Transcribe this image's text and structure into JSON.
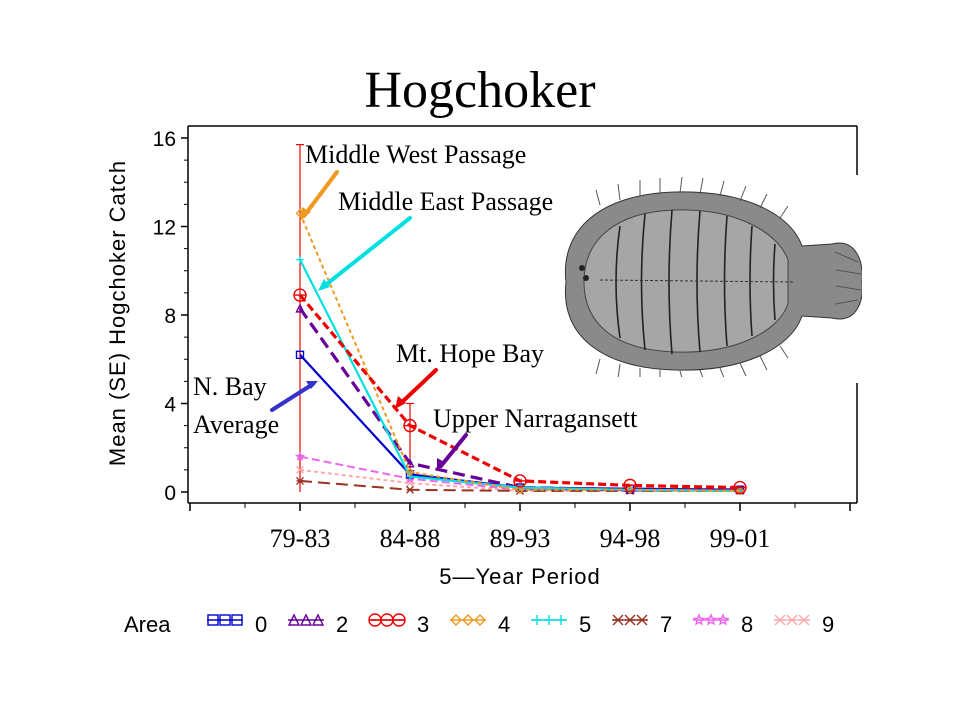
{
  "chart_data": {
    "type": "line",
    "title": "Hogchoker",
    "xlabel": "5—Year Period",
    "ylabel": "Mean (SE) Hogchoker Catch",
    "categories": [
      "79-83",
      "84-88",
      "89-93",
      "94-98",
      "99-01"
    ],
    "y_ticks": [
      "0",
      "4",
      "8",
      "12",
      "16"
    ],
    "ylim": [
      0,
      16
    ],
    "grid": false,
    "legend_position": "bottom",
    "legend_title": "Area",
    "series": [
      {
        "name": "0",
        "color": "#0000cc",
        "dash": "solid",
        "marker": "square",
        "values": [
          6.2,
          0.8,
          0.2,
          0.15,
          0.1
        ]
      },
      {
        "name": "2",
        "color": "#660099",
        "dash": "long",
        "marker": "triangle",
        "values": [
          8.3,
          1.3,
          0.2,
          0.1,
          0.1
        ]
      },
      {
        "name": "3",
        "color": "#ee0000",
        "dash": "medium",
        "marker": "circle",
        "values": [
          8.9,
          3.0,
          0.5,
          0.3,
          0.2
        ]
      },
      {
        "name": "4",
        "color": "#ee9922",
        "dash": "short",
        "marker": "diamond",
        "values": [
          12.6,
          0.9,
          0.1,
          0.1,
          0.05
        ]
      },
      {
        "name": "5",
        "color": "#00e0e0",
        "dash": "solid",
        "marker": "plus",
        "values": [
          10.5,
          0.7,
          0.2,
          0.1,
          0.05
        ]
      },
      {
        "name": "7",
        "color": "#993322",
        "dash": "long",
        "marker": "star",
        "values": [
          0.5,
          0.1,
          0.05,
          0.05,
          0.05
        ]
      },
      {
        "name": "8",
        "color": "#ee66ee",
        "dash": "medium",
        "marker": "asterisk",
        "values": [
          1.6,
          0.6,
          0.1,
          0.1,
          0.05
        ]
      },
      {
        "name": "9",
        "color": "#ffaaaa",
        "dash": "short",
        "marker": "cross",
        "values": [
          1.0,
          0.4,
          0.05,
          0.05,
          0.05
        ]
      }
    ],
    "error_bars": [
      {
        "series": "3",
        "category": "79-83",
        "low": 0.0,
        "high": 15.7
      },
      {
        "series": "3",
        "category": "84-88",
        "low": 1.0,
        "high": 4.0
      }
    ],
    "annotations": [
      {
        "text": "Middle West Passage",
        "series": "4"
      },
      {
        "text": "Middle East Passage",
        "series": "5"
      },
      {
        "text": "Mt. Hope Bay",
        "series": "3"
      },
      {
        "text": "Upper Narragansett",
        "series": "2"
      },
      {
        "text": "N. Bay",
        "series": "0"
      },
      {
        "text": "Average",
        "series": "0"
      }
    ]
  },
  "image": {
    "subject": "hogchoker-fish-illustration"
  }
}
